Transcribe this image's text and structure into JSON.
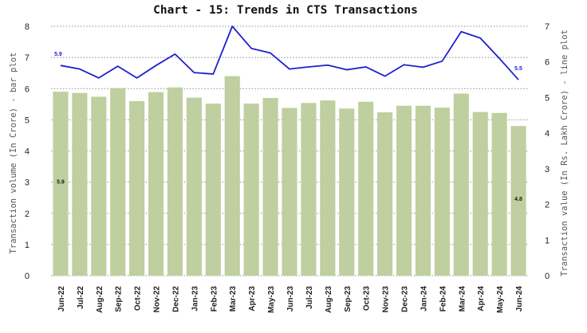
{
  "chart_data": {
    "type": "bar+line",
    "title": "Chart - 15: Trends in CTS Transactions",
    "ylabel_left": "Transaction volume (In Crore) - bar plot",
    "ylabel_right": "Transaction value (In Rs. Lakh Crore) - line plot",
    "ylim_left": [
      0,
      8
    ],
    "ylim_right": [
      0,
      7
    ],
    "yticks_left": [
      "0",
      "1",
      "2",
      "3",
      "4",
      "5",
      "6",
      "7",
      "8"
    ],
    "yticks_right": [
      "0",
      "1",
      "2",
      "3",
      "4",
      "5",
      "6",
      "7"
    ],
    "grid": "horizontal dotted",
    "categories": [
      "Jun-22",
      "Jul-22",
      "Aug-22",
      "Sep-22",
      "Oct-22",
      "Nov-22",
      "Dec-22",
      "Jan-23",
      "Feb-23",
      "Mar-23",
      "Apr-23",
      "May-23",
      "Jun-23",
      "Jul-23",
      "Aug-23",
      "Sep-23",
      "Oct-23",
      "Nov-23",
      "Dec-23",
      "Jan-24",
      "Feb-24",
      "Mar-24",
      "Apr-24",
      "May-24",
      "Jun-24"
    ],
    "bar_series": {
      "axis": "left",
      "color": "#bfcf9f",
      "values": [
        5.9,
        5.86,
        5.74,
        6.02,
        5.6,
        5.89,
        6.04,
        5.71,
        5.52,
        6.4,
        5.52,
        5.7,
        5.38,
        5.54,
        5.62,
        5.36,
        5.58,
        5.24,
        5.45,
        5.45,
        5.39,
        5.84,
        5.25,
        5.22,
        4.8
      ]
    },
    "line_series": {
      "axis": "right",
      "color": "#1f1fcc",
      "values": [
        5.9,
        5.8,
        5.55,
        5.88,
        5.55,
        5.9,
        6.22,
        5.7,
        5.66,
        7.0,
        6.38,
        6.25,
        5.8,
        5.86,
        5.91,
        5.78,
        5.86,
        5.6,
        5.92,
        5.85,
        6.02,
        6.85,
        6.67,
        6.1,
        5.5
      ]
    },
    "data_labels": {
      "bar_first": "5.9",
      "bar_last": "4.8",
      "line_first": "5.9",
      "line_last": "5.5"
    }
  }
}
